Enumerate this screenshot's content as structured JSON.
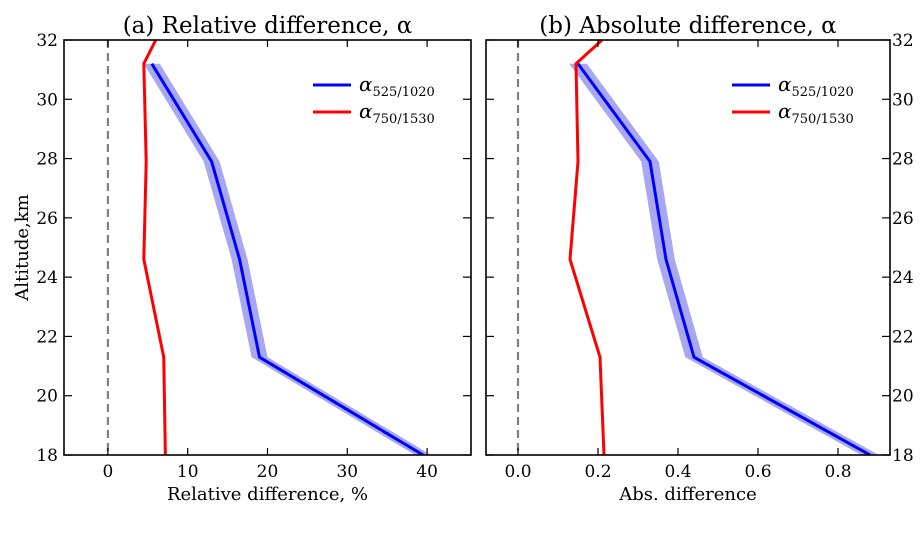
{
  "chart_data": [
    {
      "type": "line",
      "title": "(a) Relative difference, α",
      "xlabel": "Relative difference, %",
      "ylabel": "Altitude,km",
      "xlim": [
        -5.5,
        45.5
      ],
      "ylim": [
        18,
        32
      ],
      "xticks": [
        0,
        10,
        20,
        30,
        40
      ],
      "yticks": [
        18,
        20,
        22,
        24,
        26,
        28,
        30,
        32
      ],
      "grid": false,
      "legend": "top-right",
      "reference_line": {
        "x": 0,
        "style": "dashed",
        "color": "#808080"
      },
      "series": [
        {
          "name": "α525/1020",
          "label_main": "α",
          "label_sub": "525/1020",
          "color": "#0000ff",
          "band_color": "#a8a8f0",
          "band_halfwidth": 1.0,
          "x": [
            5.5,
            13.0,
            16.5,
            19.0,
            39.5
          ],
          "y": [
            31.2,
            27.9,
            24.6,
            21.3,
            18.0
          ]
        },
        {
          "name": "α750/1530",
          "label_main": "α",
          "label_sub": "750/1530",
          "color": "#ff0000",
          "x": [
            6.0,
            4.5,
            4.8,
            4.5,
            7.0,
            7.2
          ],
          "y": [
            32.0,
            31.2,
            27.9,
            24.6,
            21.3,
            18.0
          ]
        }
      ]
    },
    {
      "type": "line",
      "title": "(b) Absolute difference, α",
      "xlabel": "Abs. difference",
      "ylabel": "",
      "xlim": [
        -0.08,
        0.93
      ],
      "ylim": [
        18,
        32
      ],
      "xticks": [
        0.0,
        0.2,
        0.4,
        0.6,
        0.8
      ],
      "yticks": [
        18,
        20,
        22,
        24,
        26,
        28,
        30,
        32
      ],
      "grid": false,
      "legend": "top-right",
      "reference_line": {
        "x": 0,
        "style": "dashed",
        "color": "#808080"
      },
      "series": [
        {
          "name": "α525/1020",
          "label_main": "α",
          "label_sub": "525/1020",
          "color": "#0000ff",
          "band_color": "#a8a8f0",
          "band_halfwidth": 0.022,
          "x": [
            0.15,
            0.33,
            0.37,
            0.44,
            0.88
          ],
          "y": [
            31.2,
            27.9,
            24.6,
            21.3,
            18.0
          ]
        },
        {
          "name": "α750/1530",
          "label_main": "α",
          "label_sub": "750/1530",
          "color": "#ff0000",
          "x": [
            0.21,
            0.145,
            0.15,
            0.13,
            0.205,
            0.215
          ],
          "y": [
            32.0,
            31.2,
            27.9,
            24.6,
            21.3,
            18.0
          ]
        }
      ]
    }
  ]
}
